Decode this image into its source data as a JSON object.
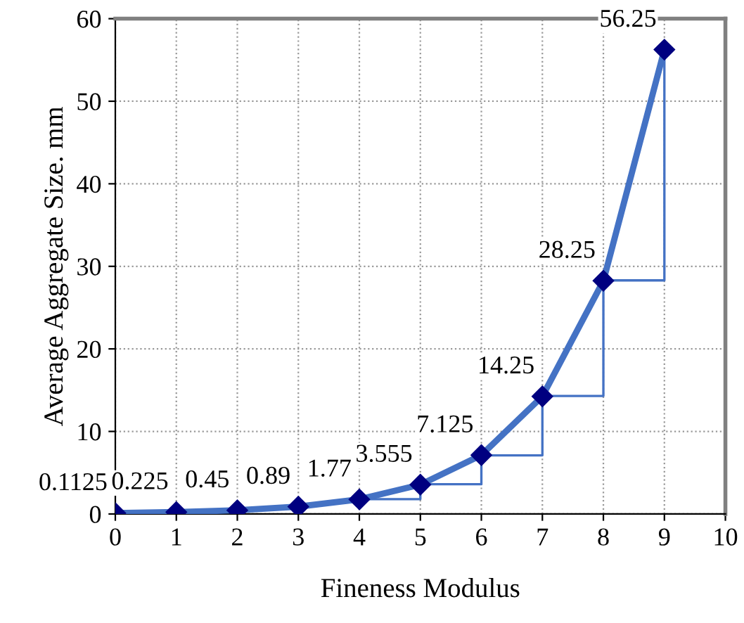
{
  "chart_data": {
    "type": "line",
    "xlabel": "Fineness Modulus",
    "ylabel": "Average Aggregate Size. mm",
    "xlim": [
      0,
      10
    ],
    "xticks": [
      0,
      1,
      2,
      3,
      4,
      5,
      6,
      7,
      8,
      9,
      10
    ],
    "ylim": [
      0,
      60
    ],
    "yticks": [
      0,
      10,
      20,
      30,
      40,
      50,
      60
    ],
    "grid": true,
    "series": [
      {
        "color": "#4472c4",
        "x": [
          0,
          1,
          2,
          3,
          4,
          5,
          6,
          7,
          8,
          9
        ],
        "values": [
          0.1125,
          0.225,
          0.45,
          0.89,
          1.77,
          3.555,
          7.125,
          14.25,
          28.25,
          56.25
        ],
        "marker": "diamond",
        "data_labels": true
      },
      {
        "type": "step",
        "color": "#4472c4",
        "x": [
          4,
          5,
          6,
          7,
          8,
          9
        ],
        "values": [
          1.8,
          3.6,
          7.1,
          14.3,
          28.3,
          56.3
        ]
      }
    ]
  }
}
